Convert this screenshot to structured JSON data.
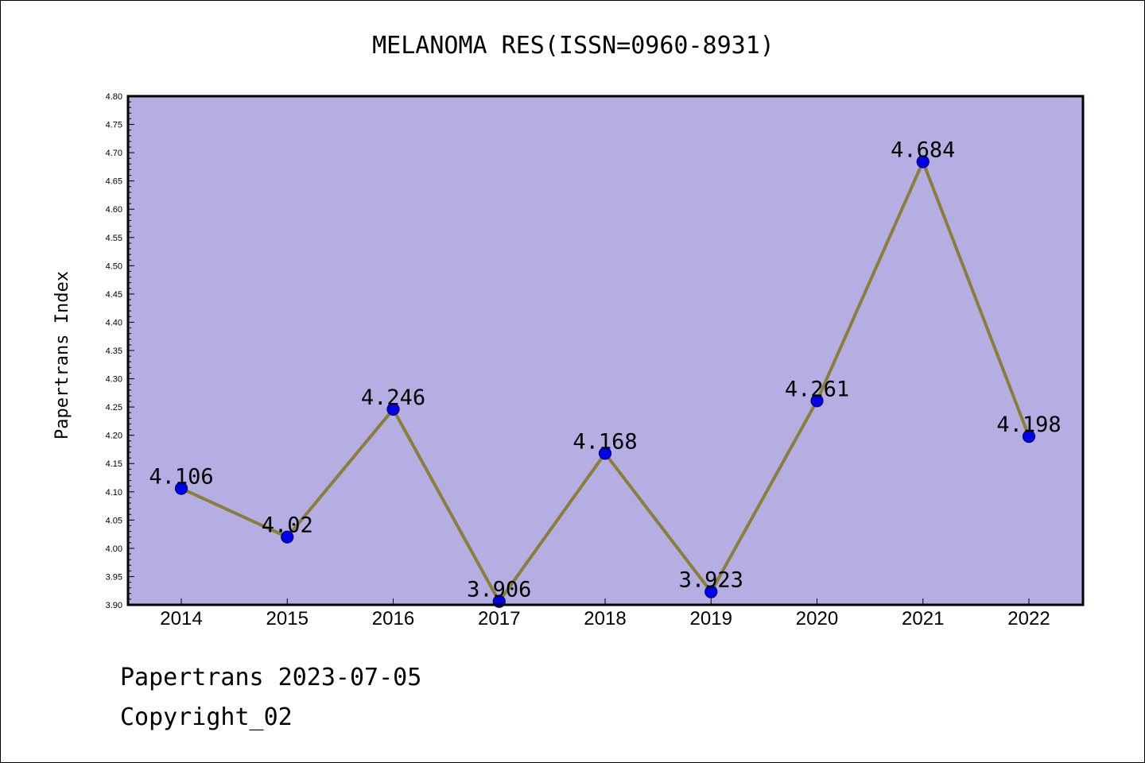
{
  "chart_data": {
    "type": "line",
    "title": "MELANOMA RES(ISSN=0960-8931)",
    "ylabel": "Papertrans Index",
    "xlabel": "",
    "categories": [
      "2014",
      "2015",
      "2016",
      "2017",
      "2018",
      "2019",
      "2020",
      "2021",
      "2022"
    ],
    "values": [
      4.106,
      4.02,
      4.246,
      3.906,
      4.168,
      3.923,
      4.261,
      4.684,
      4.198
    ],
    "data_labels": [
      "4.106",
      "4.02",
      "4.246",
      "3.906",
      "4.168",
      "3.923",
      "4.261",
      "4.684",
      "4.198"
    ],
    "ylim": [
      3.9,
      4.8
    ],
    "yticks": [
      "3.90",
      "3.95",
      "4.00",
      "4.05",
      "4.10",
      "4.15",
      "4.20",
      "4.25",
      "4.30",
      "4.35",
      "4.40",
      "4.45",
      "4.50",
      "4.55",
      "4.60",
      "4.65",
      "4.70",
      "4.75",
      "4.80"
    ],
    "grid": false,
    "colors": {
      "plot_background": "#b4aee2",
      "line": "#8b7d3a",
      "marker": "#0000ee",
      "marker_edge": "#000066"
    }
  },
  "footer": {
    "date_line": "Papertrans 2023-07-05",
    "copyright_line": "Copyright_02"
  }
}
